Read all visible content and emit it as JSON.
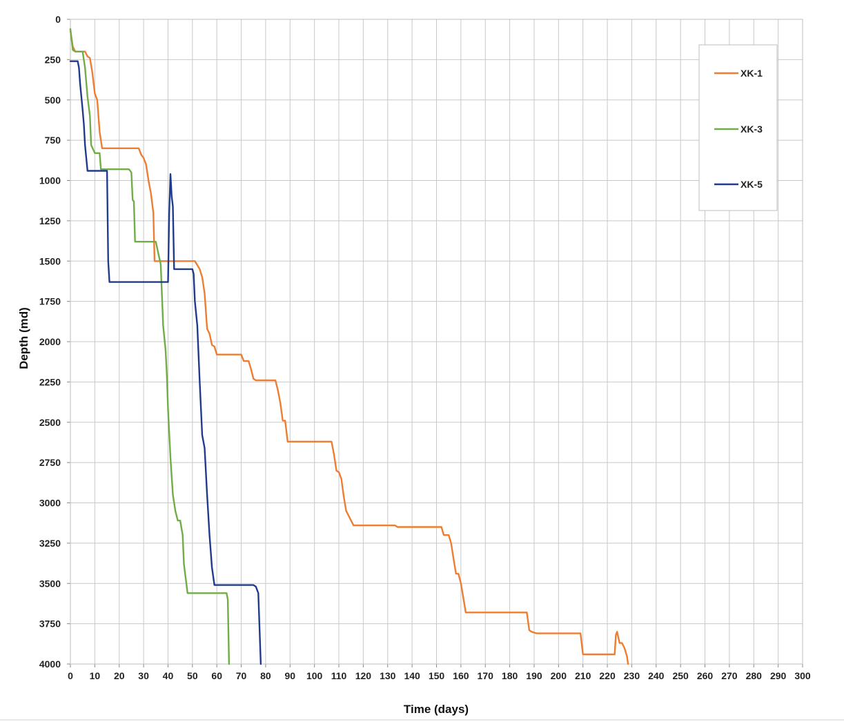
{
  "chart_data": {
    "type": "line",
    "title": "",
    "xlabel": "Time (days)",
    "ylabel": "Depth (md)",
    "xlim": [
      0,
      300
    ],
    "ylim": [
      0,
      4000
    ],
    "y_inverted": true,
    "x_ticks": [
      "0",
      "10",
      "20",
      "30",
      "40",
      "50",
      "60",
      "70",
      "80",
      "90",
      "100",
      "110",
      "120",
      "130",
      "140",
      "150",
      "160",
      "170",
      "180",
      "190",
      "200",
      "210",
      "220",
      "230",
      "240",
      "250",
      "260",
      "270",
      "280",
      "290",
      "300"
    ],
    "y_ticks": [
      "0",
      "250",
      "500",
      "750",
      "1000",
      "1250",
      "1500",
      "1750",
      "2000",
      "2250",
      "2500",
      "2750",
      "3000",
      "3250",
      "3500",
      "3750",
      "4000"
    ],
    "grid": true,
    "legend_position": "top-right",
    "series": [
      {
        "name": "XK-1",
        "color": "#ED7D31",
        "points": [
          [
            0,
            70
          ],
          [
            1,
            170
          ],
          [
            2,
            200
          ],
          [
            6,
            200
          ],
          [
            7,
            230
          ],
          [
            8,
            240
          ],
          [
            9,
            330
          ],
          [
            10,
            460
          ],
          [
            11,
            500
          ],
          [
            12,
            700
          ],
          [
            13,
            800
          ],
          [
            28,
            800
          ],
          [
            29,
            840
          ],
          [
            30,
            860
          ],
          [
            31,
            900
          ],
          [
            32,
            1000
          ],
          [
            33,
            1080
          ],
          [
            34,
            1200
          ],
          [
            34.5,
            1500
          ],
          [
            49,
            1500
          ],
          [
            51,
            1500
          ],
          [
            53,
            1550
          ],
          [
            54,
            1600
          ],
          [
            55,
            1700
          ],
          [
            56,
            1920
          ],
          [
            57,
            1950
          ],
          [
            58,
            2020
          ],
          [
            59,
            2030
          ],
          [
            60,
            2080
          ],
          [
            70,
            2080
          ],
          [
            71,
            2120
          ],
          [
            73,
            2120
          ],
          [
            74,
            2170
          ],
          [
            75,
            2230
          ],
          [
            76,
            2240
          ],
          [
            84,
            2240
          ],
          [
            85,
            2300
          ],
          [
            86,
            2380
          ],
          [
            87,
            2490
          ],
          [
            88,
            2490
          ],
          [
            89,
            2620
          ],
          [
            107,
            2620
          ],
          [
            108,
            2700
          ],
          [
            109,
            2800
          ],
          [
            110,
            2810
          ],
          [
            111,
            2850
          ],
          [
            112,
            2960
          ],
          [
            113,
            3050
          ],
          [
            114,
            3080
          ],
          [
            116,
            3140
          ],
          [
            133,
            3140
          ],
          [
            134,
            3150
          ],
          [
            152,
            3150
          ],
          [
            153,
            3200
          ],
          [
            155,
            3200
          ],
          [
            156,
            3250
          ],
          [
            157,
            3350
          ],
          [
            158,
            3440
          ],
          [
            159,
            3440
          ],
          [
            160,
            3500
          ],
          [
            162,
            3680
          ],
          [
            187,
            3680
          ],
          [
            188,
            3790
          ],
          [
            189,
            3800
          ],
          [
            191,
            3810
          ],
          [
            209,
            3810
          ],
          [
            210,
            3940
          ],
          [
            223,
            3940
          ],
          [
            223.5,
            3820
          ],
          [
            224,
            3800
          ],
          [
            225,
            3870
          ],
          [
            226,
            3870
          ],
          [
            227,
            3900
          ],
          [
            228,
            3950
          ],
          [
            228.5,
            4000
          ]
        ]
      },
      {
        "name": "XK-3",
        "color": "#70AD47",
        "points": [
          [
            0,
            60
          ],
          [
            1,
            190
          ],
          [
            2,
            200
          ],
          [
            5,
            200
          ],
          [
            6,
            300
          ],
          [
            7,
            480
          ],
          [
            8,
            600
          ],
          [
            8.5,
            780
          ],
          [
            10,
            830
          ],
          [
            12,
            830
          ],
          [
            12.5,
            930
          ],
          [
            24,
            930
          ],
          [
            25,
            950
          ],
          [
            25.5,
            1120
          ],
          [
            26,
            1130
          ],
          [
            26.5,
            1380
          ],
          [
            35,
            1380
          ],
          [
            36,
            1450
          ],
          [
            37,
            1520
          ],
          [
            38,
            1900
          ],
          [
            39,
            2050
          ],
          [
            39.5,
            2200
          ],
          [
            40,
            2420
          ],
          [
            41,
            2720
          ],
          [
            42,
            2950
          ],
          [
            43,
            3050
          ],
          [
            44,
            3110
          ],
          [
            45,
            3110
          ],
          [
            46,
            3200
          ],
          [
            46.5,
            3380
          ],
          [
            48,
            3560
          ],
          [
            64,
            3560
          ],
          [
            64.5,
            3600
          ],
          [
            65,
            4000
          ]
        ]
      },
      {
        "name": "XK-5",
        "color": "#203B8C",
        "points": [
          [
            0,
            260
          ],
          [
            3,
            260
          ],
          [
            3.5,
            300
          ],
          [
            4,
            400
          ],
          [
            5,
            560
          ],
          [
            5.5,
            650
          ],
          [
            6,
            780
          ],
          [
            7,
            940
          ],
          [
            15,
            940
          ],
          [
            15.5,
            1500
          ],
          [
            16,
            1630
          ],
          [
            40,
            1630
          ],
          [
            40.5,
            1200
          ],
          [
            41,
            960
          ],
          [
            41.5,
            1100
          ],
          [
            42,
            1160
          ],
          [
            42.5,
            1550
          ],
          [
            50,
            1550
          ],
          [
            50.5,
            1580
          ],
          [
            51,
            1750
          ],
          [
            52,
            1900
          ],
          [
            53,
            2250
          ],
          [
            54,
            2580
          ],
          [
            55,
            2660
          ],
          [
            56,
            2950
          ],
          [
            57,
            3200
          ],
          [
            58,
            3400
          ],
          [
            59,
            3510
          ],
          [
            75,
            3510
          ],
          [
            76,
            3520
          ],
          [
            77,
            3560
          ],
          [
            78,
            4000
          ]
        ]
      }
    ]
  }
}
